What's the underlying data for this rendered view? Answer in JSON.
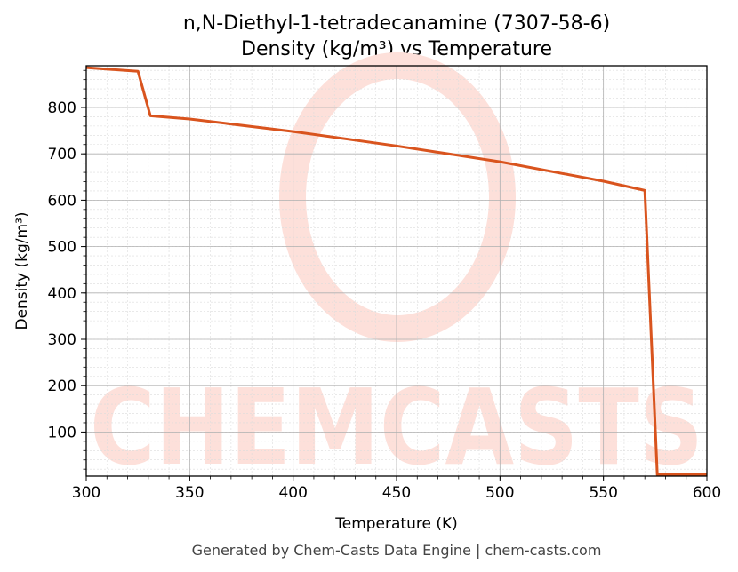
{
  "chart_data": {
    "type": "line",
    "title": "n,N-Diethyl-1-tetradecanamine (7307-58-6)",
    "subtitle": "Density (kg/m³) vs Temperature",
    "xlabel": "Temperature (K)",
    "ylabel": "Density (kg/m³)",
    "xlim": [
      300,
      600
    ],
    "ylim": [
      5,
      890
    ],
    "xticks": [
      300,
      350,
      400,
      450,
      500,
      550,
      600
    ],
    "yticks": [
      100,
      200,
      300,
      400,
      500,
      600,
      700,
      800
    ],
    "grid": true,
    "line_color": "#d9541e",
    "series": [
      {
        "x": [
          300,
          325,
          331,
          350,
          400,
          450,
          500,
          550,
          570,
          576,
          600
        ],
        "y": [
          886,
          878,
          782,
          775,
          748,
          717,
          683,
          641,
          621,
          8,
          8
        ]
      }
    ]
  },
  "watermark": {
    "text": "CHEMCASTS",
    "color": "#fde0da"
  },
  "footer": "Generated by Chem-Casts Data Engine | chem-casts.com"
}
